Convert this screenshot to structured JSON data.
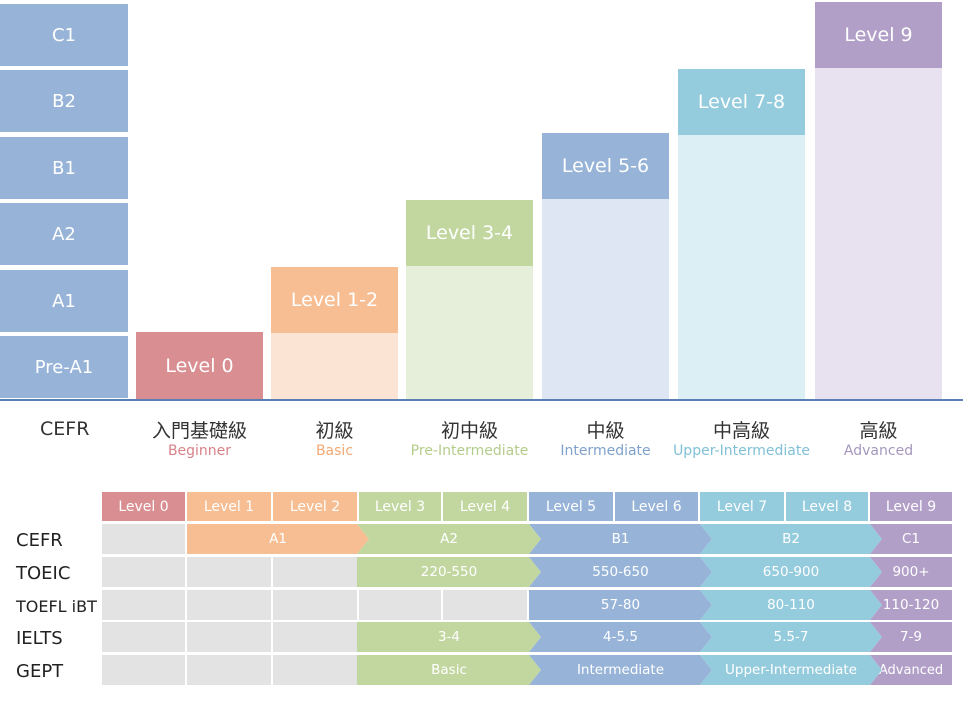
{
  "cefr_column": {
    "levels": [
      "C1",
      "B2",
      "B1",
      "A2",
      "A1",
      "Pre-A1"
    ],
    "color": "#97b4d8"
  },
  "steps": [
    {
      "head": "Level 0",
      "cn": "入門基礎級",
      "en": "Beginner",
      "color": "#d98e92",
      "light": "#d98e92",
      "en_color": "#d88288"
    },
    {
      "head": "Level 1-2",
      "cn": "初級",
      "en": "Basic",
      "color": "#f7be93",
      "light": "#fbe4d3",
      "en_color": "#f2a873"
    },
    {
      "head": "Level 3-4",
      "cn": "初中級",
      "en": "Pre-Intermediate",
      "color": "#c2d7a0",
      "light": "#e6efd9",
      "en_color": "#b4cc8a"
    },
    {
      "head": "Level 5-6",
      "cn": "中級",
      "en": "Intermediate",
      "color": "#97b4d8",
      "light": "#dde6f2",
      "en_color": "#7fa1cc"
    },
    {
      "head": "Level 7-8",
      "cn": "中高級",
      "en": "Upper-Intermediate",
      "color": "#94cbdd",
      "light": "#dbeff5",
      "en_color": "#7fc0d6"
    },
    {
      "head": "Level 9",
      "cn": "高級",
      "en": "Advanced",
      "color": "#b19fc8",
      "light": "#e8e2f0",
      "en_color": "#a597bd"
    }
  ],
  "cefr_axis_label": "CEFR",
  "table": {
    "header": [
      "Level 0",
      "Level 1",
      "Level 2",
      "Level 3",
      "Level 4",
      "Level 5",
      "Level 6",
      "Level 7",
      "Level 8",
      "Level 9"
    ],
    "rows": [
      {
        "label": "CEFR",
        "a1": "A1",
        "a2": "A2",
        "b1": "B1",
        "b2": "B2",
        "c1": "C1"
      },
      {
        "label": "TOEIC",
        "green": "220-550",
        "blue": "550-650",
        "cyan": "650-900",
        "purple": "900+"
      },
      {
        "label": "TOEFL iBT",
        "blue": "57-80",
        "cyan": "80-110",
        "purple": "110-120"
      },
      {
        "label": "IELTS",
        "green": "3-4",
        "blue": "4-5.5",
        "cyan": "5.5-7",
        "purple": "7-9"
      },
      {
        "label": "GEPT",
        "green": "Basic",
        "blue": "Intermediate",
        "cyan": "Upper-Intermediate",
        "purple": "Advanced"
      }
    ]
  }
}
